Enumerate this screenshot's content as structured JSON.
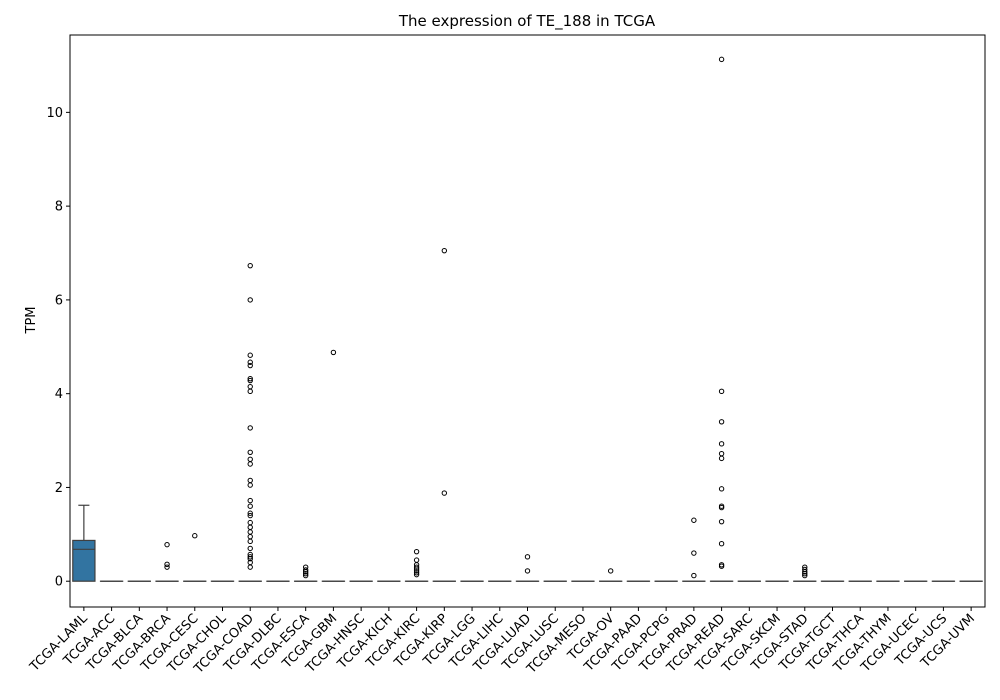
{
  "chart_data": {
    "type": "box",
    "title": "The expression of TE_188 in TCGA",
    "xlabel": "",
    "ylabel": "TPM",
    "ylim": [
      -0.55,
      11.65
    ],
    "yticks": [
      0,
      2,
      4,
      6,
      8,
      10
    ],
    "grid": false,
    "box_color": "#3274a1",
    "categories": [
      "TCGA-LAML",
      "TCGA-ACC",
      "TCGA-BLCA",
      "TCGA-BRCA",
      "TCGA-CESC",
      "TCGA-CHOL",
      "TCGA-COAD",
      "TCGA-DLBC",
      "TCGA-ESCA",
      "TCGA-GBM",
      "TCGA-HNSC",
      "TCGA-KICH",
      "TCGA-KIRC",
      "TCGA-KIRP",
      "TCGA-LGG",
      "TCGA-LIHC",
      "TCGA-LUAD",
      "TCGA-LUSC",
      "TCGA-MESO",
      "TCGA-OV",
      "TCGA-PAAD",
      "TCGA-PCPG",
      "TCGA-PRAD",
      "TCGA-READ",
      "TCGA-SARC",
      "TCGA-SKCM",
      "TCGA-STAD",
      "TCGA-TGCT",
      "TCGA-THCA",
      "TCGA-THYM",
      "TCGA-UCEC",
      "TCGA-UCS",
      "TCGA-UVM"
    ],
    "boxes": [
      {
        "q1": 0,
        "median": 0.68,
        "q3": 0.87,
        "whisker_low": 0,
        "whisker_high": 1.62,
        "outliers": []
      },
      {
        "q1": 0,
        "median": 0,
        "q3": 0,
        "whisker_low": 0,
        "whisker_high": 0,
        "outliers": []
      },
      {
        "q1": 0,
        "median": 0,
        "q3": 0,
        "whisker_low": 0,
        "whisker_high": 0,
        "outliers": []
      },
      {
        "q1": 0,
        "median": 0,
        "q3": 0,
        "whisker_low": 0,
        "whisker_high": 0,
        "outliers": [
          0.3,
          0.36,
          0.78
        ]
      },
      {
        "q1": 0,
        "median": 0,
        "q3": 0,
        "whisker_low": 0,
        "whisker_high": 0,
        "outliers": [
          0.97
        ]
      },
      {
        "q1": 0,
        "median": 0,
        "q3": 0,
        "whisker_low": 0,
        "whisker_high": 0,
        "outliers": []
      },
      {
        "q1": 0,
        "median": 0,
        "q3": 0,
        "whisker_low": 0,
        "whisker_high": 0,
        "outliers": [
          0.3,
          0.4,
          0.48,
          0.52,
          0.57,
          0.7,
          0.85,
          0.95,
          1.05,
          1.15,
          1.25,
          1.4,
          1.45,
          1.6,
          1.72,
          2.05,
          2.15,
          2.5,
          2.6,
          2.75,
          3.27,
          4.05,
          4.15,
          4.28,
          4.32,
          4.6,
          4.67,
          4.82,
          6.0,
          6.73
        ]
      },
      {
        "q1": 0,
        "median": 0,
        "q3": 0,
        "whisker_low": 0,
        "whisker_high": 0,
        "outliers": []
      },
      {
        "q1": 0,
        "median": 0,
        "q3": 0,
        "whisker_low": 0,
        "whisker_high": 0,
        "outliers": [
          0.12,
          0.16,
          0.2,
          0.24,
          0.3
        ]
      },
      {
        "q1": 0,
        "median": 0,
        "q3": 0,
        "whisker_low": 0,
        "whisker_high": 0,
        "outliers": [
          4.88
        ]
      },
      {
        "q1": 0,
        "median": 0,
        "q3": 0,
        "whisker_low": 0,
        "whisker_high": 0,
        "outliers": []
      },
      {
        "q1": 0,
        "median": 0,
        "q3": 0,
        "whisker_low": 0,
        "whisker_high": 0,
        "outliers": []
      },
      {
        "q1": 0,
        "median": 0,
        "q3": 0,
        "whisker_low": 0,
        "whisker_high": 0,
        "outliers": [
          0.14,
          0.18,
          0.22,
          0.26,
          0.3,
          0.35,
          0.45,
          0.63
        ]
      },
      {
        "q1": 0,
        "median": 0,
        "q3": 0,
        "whisker_low": 0,
        "whisker_high": 0,
        "outliers": [
          1.88,
          7.05
        ]
      },
      {
        "q1": 0,
        "median": 0,
        "q3": 0,
        "whisker_low": 0,
        "whisker_high": 0,
        "outliers": []
      },
      {
        "q1": 0,
        "median": 0,
        "q3": 0,
        "whisker_low": 0,
        "whisker_high": 0,
        "outliers": []
      },
      {
        "q1": 0,
        "median": 0,
        "q3": 0,
        "whisker_low": 0,
        "whisker_high": 0,
        "outliers": [
          0.22,
          0.52
        ]
      },
      {
        "q1": 0,
        "median": 0,
        "q3": 0,
        "whisker_low": 0,
        "whisker_high": 0,
        "outliers": []
      },
      {
        "q1": 0,
        "median": 0,
        "q3": 0,
        "whisker_low": 0,
        "whisker_high": 0,
        "outliers": []
      },
      {
        "q1": 0,
        "median": 0,
        "q3": 0,
        "whisker_low": 0,
        "whisker_high": 0,
        "outliers": [
          0.22
        ]
      },
      {
        "q1": 0,
        "median": 0,
        "q3": 0,
        "whisker_low": 0,
        "whisker_high": 0,
        "outliers": []
      },
      {
        "q1": 0,
        "median": 0,
        "q3": 0,
        "whisker_low": 0,
        "whisker_high": 0,
        "outliers": []
      },
      {
        "q1": 0,
        "median": 0,
        "q3": 0,
        "whisker_low": 0,
        "whisker_high": 0,
        "outliers": [
          0.12,
          0.6,
          1.3
        ]
      },
      {
        "q1": 0,
        "median": 0,
        "q3": 0,
        "whisker_low": 0,
        "whisker_high": 0,
        "outliers": [
          0.32,
          0.35,
          0.8,
          1.27,
          1.57,
          1.6,
          1.97,
          2.62,
          2.72,
          2.93,
          3.4,
          4.05,
          11.13
        ]
      },
      {
        "q1": 0,
        "median": 0,
        "q3": 0,
        "whisker_low": 0,
        "whisker_high": 0,
        "outliers": []
      },
      {
        "q1": 0,
        "median": 0,
        "q3": 0,
        "whisker_low": 0,
        "whisker_high": 0,
        "outliers": []
      },
      {
        "q1": 0,
        "median": 0,
        "q3": 0,
        "whisker_low": 0,
        "whisker_high": 0,
        "outliers": [
          0.12,
          0.16,
          0.2,
          0.25,
          0.3
        ]
      },
      {
        "q1": 0,
        "median": 0,
        "q3": 0,
        "whisker_low": 0,
        "whisker_high": 0,
        "outliers": []
      },
      {
        "q1": 0,
        "median": 0,
        "q3": 0,
        "whisker_low": 0,
        "whisker_high": 0,
        "outliers": []
      },
      {
        "q1": 0,
        "median": 0,
        "q3": 0,
        "whisker_low": 0,
        "whisker_high": 0,
        "outliers": []
      },
      {
        "q1": 0,
        "median": 0,
        "q3": 0,
        "whisker_low": 0,
        "whisker_high": 0,
        "outliers": []
      },
      {
        "q1": 0,
        "median": 0,
        "q3": 0,
        "whisker_low": 0,
        "whisker_high": 0,
        "outliers": []
      },
      {
        "q1": 0,
        "median": 0,
        "q3": 0,
        "whisker_low": 0,
        "whisker_high": 0,
        "outliers": []
      }
    ]
  }
}
